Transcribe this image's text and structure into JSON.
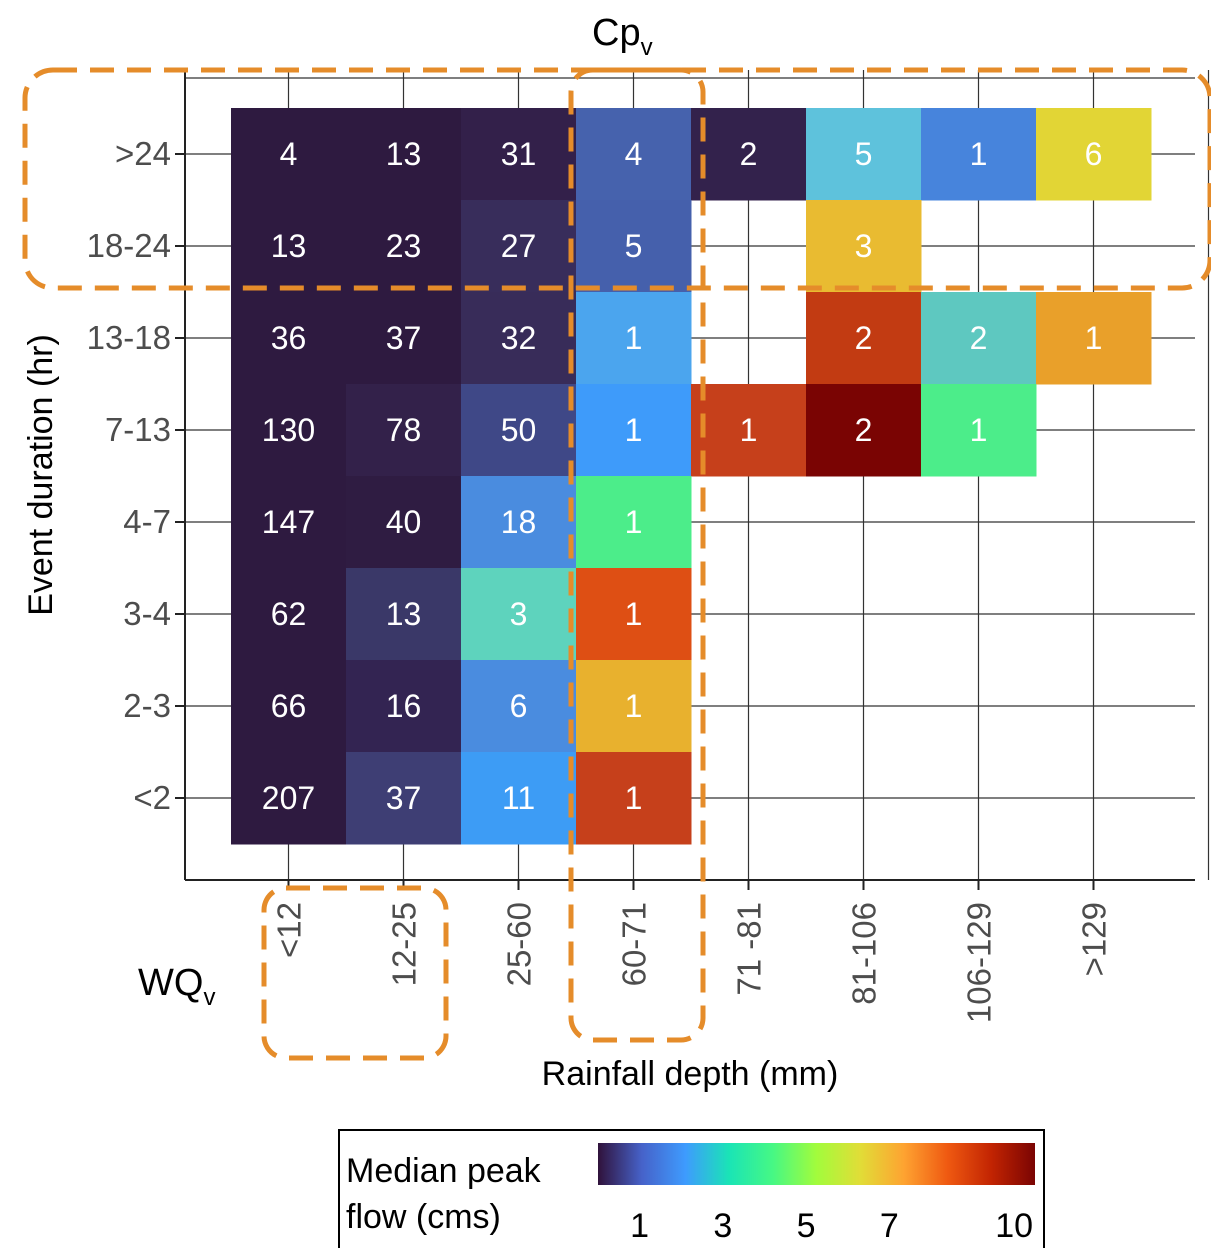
{
  "chart_data": {
    "type": "heatmap",
    "xlabel": "Rainfall depth (mm)",
    "ylabel": "Event duration (hr)",
    "x_categories": [
      "<12",
      "12-25",
      "25-60",
      "60-71",
      "71 -81",
      "81-106",
      "106-129",
      ">129"
    ],
    "y_categories": [
      ">24",
      "18-24",
      "13-18",
      "7-13",
      "4-7",
      "3-4",
      "2-3",
      "<2"
    ],
    "cells": [
      {
        "x": "<12",
        "y": ">24",
        "count": 4,
        "color": "#2e1a40"
      },
      {
        "x": "12-25",
        "y": ">24",
        "count": 13,
        "color": "#2e1a40"
      },
      {
        "x": "25-60",
        "y": ">24",
        "count": 31,
        "color": "#33204a"
      },
      {
        "x": "60-71",
        "y": ">24",
        "count": 4,
        "color": "#4662ad"
      },
      {
        "x": "71 -81",
        "y": ">24",
        "count": 2,
        "color": "#33224c"
      },
      {
        "x": "81-106",
        "y": ">24",
        "count": 5,
        "color": "#5ec2dc"
      },
      {
        "x": "106-129",
        "y": ">24",
        "count": 1,
        "color": "#4784dc"
      },
      {
        "x": ">129",
        "y": ">24",
        "count": 6,
        "color": "#e2d535"
      },
      {
        "x": "<12",
        "y": "18-24",
        "count": 13,
        "color": "#2e1a40"
      },
      {
        "x": "12-25",
        "y": "18-24",
        "count": 23,
        "color": "#2e1a40"
      },
      {
        "x": "25-60",
        "y": "18-24",
        "count": 27,
        "color": "#382d5b"
      },
      {
        "x": "60-71",
        "y": "18-24",
        "count": 5,
        "color": "#4560ac"
      },
      {
        "x": "81-106",
        "y": "18-24",
        "count": 3,
        "color": "#e9bb31"
      },
      {
        "x": "<12",
        "y": "13-18",
        "count": 36,
        "color": "#2e1a40"
      },
      {
        "x": "12-25",
        "y": "13-18",
        "count": 37,
        "color": "#2e1a40"
      },
      {
        "x": "25-60",
        "y": "13-18",
        "count": 32,
        "color": "#382c59"
      },
      {
        "x": "60-71",
        "y": "13-18",
        "count": 1,
        "color": "#4ba5ee"
      },
      {
        "x": "81-106",
        "y": "13-18",
        "count": 2,
        "color": "#c23b12"
      },
      {
        "x": "106-129",
        "y": "13-18",
        "count": 2,
        "color": "#5ec8c0"
      },
      {
        "x": ">129",
        "y": "13-18",
        "count": 1,
        "color": "#e9a02a"
      },
      {
        "x": "<12",
        "y": "7-13",
        "count": 130,
        "color": "#2e1a40"
      },
      {
        "x": "12-25",
        "y": "7-13",
        "count": 78,
        "color": "#33214a"
      },
      {
        "x": "25-60",
        "y": "7-13",
        "count": 50,
        "color": "#3f4887"
      },
      {
        "x": "60-71",
        "y": "7-13",
        "count": 1,
        "color": "#3e9bfa"
      },
      {
        "x": "71 -81",
        "y": "7-13",
        "count": 1,
        "color": "#c6401b"
      },
      {
        "x": "81-106",
        "y": "7-13",
        "count": 2,
        "color": "#7a0403"
      },
      {
        "x": "106-129",
        "y": "7-13",
        "count": 1,
        "color": "#4ced8a"
      },
      {
        "x": "<12",
        "y": "4-7",
        "count": 147,
        "color": "#2e1a40"
      },
      {
        "x": "12-25",
        "y": "4-7",
        "count": 40,
        "color": "#2f1c42"
      },
      {
        "x": "25-60",
        "y": "4-7",
        "count": 18,
        "color": "#4a8cdf"
      },
      {
        "x": "60-71",
        "y": "4-7",
        "count": 1,
        "color": "#4ced8a"
      },
      {
        "x": "<12",
        "y": "3-4",
        "count": 62,
        "color": "#2e1a40"
      },
      {
        "x": "12-25",
        "y": "3-4",
        "count": 13,
        "color": "#3a3868"
      },
      {
        "x": "25-60",
        "y": "3-4",
        "count": 3,
        "color": "#5ed3bd"
      },
      {
        "x": "60-71",
        "y": "3-4",
        "count": 1,
        "color": "#de4f14"
      },
      {
        "x": "<12",
        "y": "2-3",
        "count": 66,
        "color": "#2e1a40"
      },
      {
        "x": "12-25",
        "y": "2-3",
        "count": 16,
        "color": "#332452"
      },
      {
        "x": "25-60",
        "y": "2-3",
        "count": 6,
        "color": "#4a8cdf"
      },
      {
        "x": "60-71",
        "y": "2-3",
        "count": 1,
        "color": "#e8b12e"
      },
      {
        "x": "<12",
        "y": "<2",
        "count": 207,
        "color": "#2e1a40"
      },
      {
        "x": "12-25",
        "y": "<2",
        "count": 37,
        "color": "#3e3e74"
      },
      {
        "x": "25-60",
        "y": "<2",
        "count": 11,
        "color": "#3d9cf5"
      },
      {
        "x": "60-71",
        "y": "<2",
        "count": 1,
        "color": "#c6401b"
      }
    ],
    "colorbar": {
      "title_lines": [
        "Median peak",
        "flow (cms)"
      ],
      "ticks": [
        "1",
        "3",
        "5",
        "7",
        "10"
      ],
      "tick_values": [
        1,
        3,
        5,
        7,
        10
      ],
      "range": [
        0,
        10.5
      ],
      "colors": [
        "#30123b",
        "#4662c9",
        "#3e9bfe",
        "#1ae4b6",
        "#46f884",
        "#a2fc3c",
        "#e1dd37",
        "#fea331",
        "#ef5911",
        "#c22402",
        "#7a0403"
      ]
    },
    "annotations": [
      {
        "text": "Cp",
        "subscript": "v",
        "target_x": [
          "60-71"
        ],
        "target_y": []
      },
      {
        "text": "WQ",
        "subscript": "v",
        "target_x": [
          "<12",
          "12-25"
        ],
        "target_y": []
      },
      {
        "target_x": [],
        "target_y": [
          ">24",
          "18-24"
        ]
      }
    ],
    "highlight_color": "#e58c2a"
  }
}
